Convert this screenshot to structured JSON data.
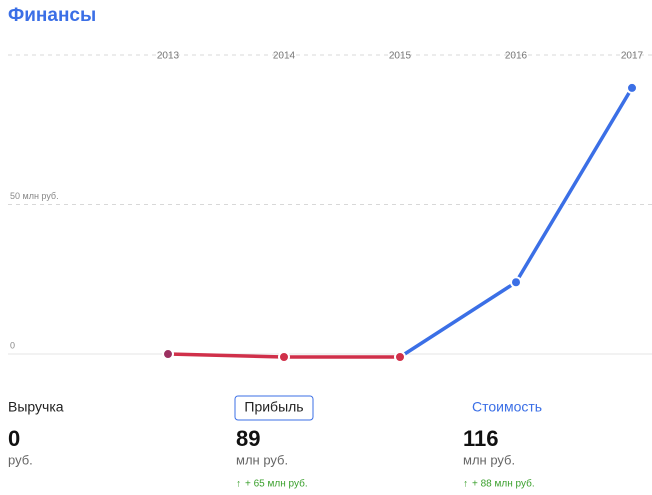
{
  "title": "Финансы",
  "chart_data": {
    "type": "line",
    "categories": [
      "2013",
      "2014",
      "2015",
      "2016",
      "2017"
    ],
    "series": [
      {
        "name": "Прибыль",
        "values": [
          0,
          -1,
          -1,
          24,
          89
        ],
        "point_colors": [
          "#9c3060",
          "#d0304a",
          "#d0304a",
          "#3b6fe6",
          "#3b6fe6"
        ]
      }
    ],
    "ylim": [
      -2,
      100
    ],
    "yticks": [
      0,
      {
        "value": 50,
        "label": "50 млн руб."
      }
    ],
    "grid": true
  },
  "metrics": [
    {
      "label": "Выручка",
      "value": "0",
      "unit": "руб."
    },
    {
      "label": "Прибыль",
      "value": "89",
      "unit": "млн руб.",
      "change": "+ 65 млн руб.",
      "active": true
    },
    {
      "label": "Стоимость",
      "value": "116",
      "unit": "млн руб.",
      "change": "+ 88 млн руб."
    }
  ]
}
